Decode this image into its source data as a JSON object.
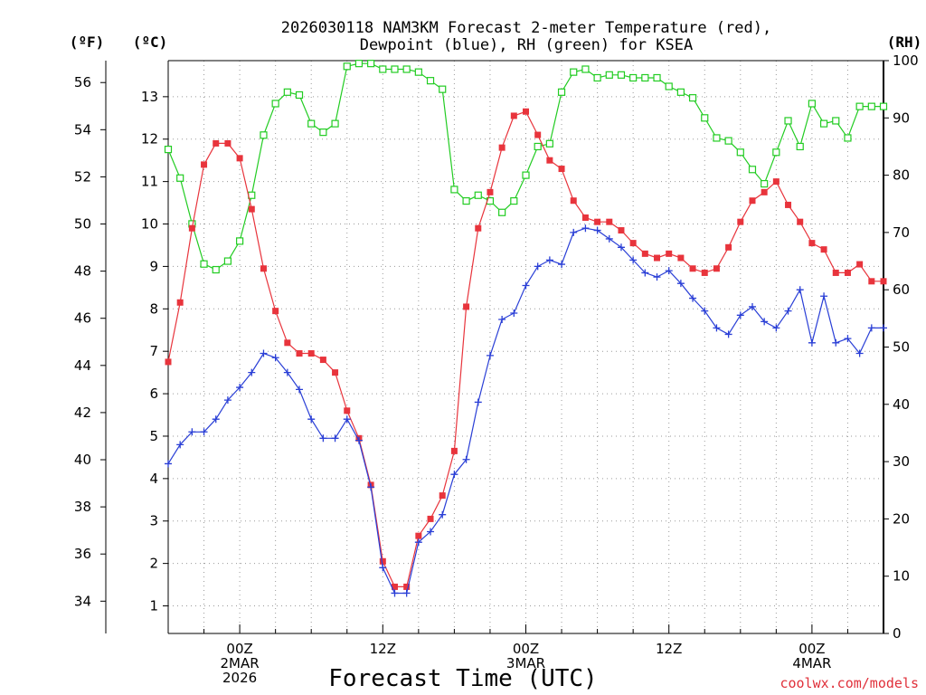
{
  "chart_data": {
    "type": "line",
    "title_line1": "2026030118 NAM3KM Forecast 2-meter Temperature (red),",
    "title_line2": "Dewpoint (blue), RH (green) for KSEA",
    "y_left_outer_unit": "(ºF)",
    "y_left_inner_unit": "(ºC)",
    "y_right_unit": "(RH)",
    "xlabel": "Forecast Time (UTC)",
    "credit": "coolwx.com/models",
    "x_range_hours": [
      0,
      60
    ],
    "x_ticks": [
      {
        "hour": 6,
        "lines": [
          "00Z",
          "2MAR",
          "2026"
        ]
      },
      {
        "hour": 18,
        "lines": [
          "12Z"
        ]
      },
      {
        "hour": 30,
        "lines": [
          "00Z",
          "3MAR"
        ]
      },
      {
        "hour": 42,
        "lines": [
          "12Z"
        ]
      },
      {
        "hour": 54,
        "lines": [
          "00Z",
          "4MAR"
        ]
      }
    ],
    "celsius_axis": {
      "range": [
        0.35,
        13.85
      ],
      "ticks": [
        1,
        2,
        3,
        4,
        5,
        6,
        7,
        8,
        9,
        10,
        11,
        12,
        13
      ]
    },
    "fahrenheit_axis": {
      "ticks": [
        34,
        36,
        38,
        40,
        42,
        44,
        46,
        48,
        50,
        52,
        54,
        56
      ]
    },
    "rh_axis": {
      "range": [
        0,
        100
      ],
      "ticks": [
        0,
        10,
        20,
        30,
        40,
        50,
        60,
        70,
        80,
        90,
        100
      ]
    },
    "series": [
      {
        "name": "2-meter Temperature",
        "unit": "C",
        "color": "#e8343c",
        "marker": "filled-square",
        "values": [
          6.75,
          8.15,
          9.9,
          11.4,
          11.9,
          11.9,
          11.55,
          10.35,
          8.95,
          7.95,
          7.2,
          6.95,
          6.95,
          6.8,
          6.5,
          5.6,
          4.95,
          3.85,
          2.05,
          1.45,
          1.45,
          2.65,
          3.05,
          3.6,
          4.65,
          8.05,
          9.9,
          10.75,
          11.8,
          12.55,
          12.65,
          12.1,
          11.5,
          11.3,
          10.55,
          10.15,
          10.05,
          10.05,
          9.85,
          9.55,
          9.3,
          9.2,
          9.3,
          9.2,
          8.95,
          8.85,
          8.95,
          9.45,
          10.05,
          10.55,
          10.75,
          11.0,
          10.45,
          10.05,
          9.55,
          9.4,
          8.85,
          8.85,
          9.05,
          8.65,
          8.65
        ]
      },
      {
        "name": "Dewpoint",
        "unit": "C",
        "color": "#2a3fd6",
        "marker": "plus",
        "values": [
          4.35,
          4.8,
          5.1,
          5.1,
          5.4,
          5.85,
          6.15,
          6.5,
          6.95,
          6.85,
          6.5,
          6.1,
          5.4,
          4.95,
          4.95,
          5.4,
          4.9,
          3.8,
          1.9,
          1.3,
          1.3,
          2.5,
          2.75,
          3.15,
          4.1,
          4.45,
          5.8,
          6.9,
          7.75,
          7.9,
          8.55,
          9.0,
          9.15,
          9.05,
          9.8,
          9.9,
          9.85,
          9.65,
          9.45,
          9.15,
          8.85,
          8.75,
          8.9,
          8.6,
          8.25,
          7.95,
          7.55,
          7.4,
          7.85,
          8.05,
          7.7,
          7.55,
          7.95,
          8.45,
          7.2,
          8.3,
          7.2,
          7.3,
          6.95,
          7.55,
          7.55
        ]
      },
      {
        "name": "RH",
        "unit": "%",
        "color": "#22cc22",
        "marker": "open-square",
        "values": [
          84.5,
          79.5,
          71.5,
          64.5,
          63.5,
          65.0,
          68.5,
          76.5,
          87.0,
          92.5,
          94.5,
          94.0,
          89.0,
          87.5,
          89.0,
          99.0,
          99.5,
          99.5,
          98.5,
          98.5,
          98.5,
          98.0,
          96.5,
          95.0,
          77.5,
          75.5,
          76.5,
          75.5,
          73.5,
          75.5,
          80.0,
          85.0,
          85.5,
          94.5,
          98.0,
          98.5,
          97.0,
          97.5,
          97.5,
          97.0,
          97.0,
          97.0,
          95.5,
          94.5,
          93.5,
          90.0,
          86.5,
          86.0,
          84.0,
          81.0,
          78.5,
          84.0,
          89.5,
          85.0,
          92.5,
          89.0,
          89.5,
          86.5,
          92.0,
          92.0,
          92.0
        ]
      }
    ]
  }
}
